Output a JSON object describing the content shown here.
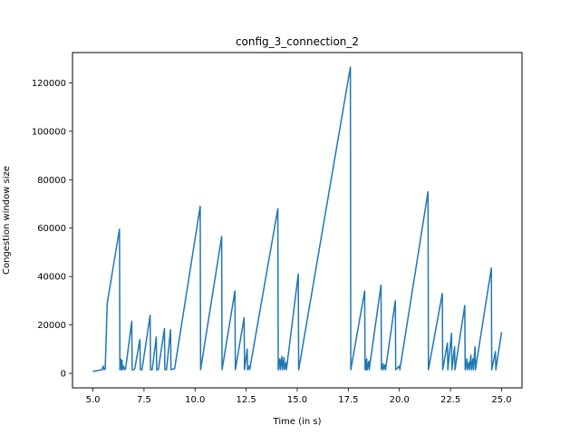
{
  "chart_data": {
    "type": "line",
    "title": "config_3_connection_2",
    "xlabel": "Time (in s)",
    "ylabel": "Congestion window size",
    "xlim": [
      4.0,
      26.0
    ],
    "ylim": [
      -6000,
      132500
    ],
    "xticks": [
      5.0,
      7.5,
      10.0,
      12.5,
      15.0,
      17.5,
      20.0,
      22.5,
      25.0
    ],
    "xtick_labels": [
      "5.0",
      "7.5",
      "10.0",
      "12.5",
      "15.0",
      "17.5",
      "20.0",
      "22.5",
      "25.0"
    ],
    "yticks": [
      0,
      20000,
      40000,
      60000,
      80000,
      100000,
      120000
    ],
    "ytick_labels": [
      "0",
      "20000",
      "40000",
      "60000",
      "80000",
      "100000",
      "120000"
    ],
    "grid": false,
    "line_color": "#1f77b4",
    "series": [
      {
        "x": [
          5.0,
          5.25,
          5.45,
          5.5,
          5.55,
          5.6,
          5.7,
          6.3,
          6.32,
          6.35,
          6.4,
          6.42,
          6.45,
          6.5,
          6.55,
          6.6,
          6.9,
          6.92,
          7.0,
          7.05,
          7.3,
          7.32,
          7.4,
          7.8,
          7.82,
          7.9,
          8.1,
          8.12,
          8.2,
          8.5,
          8.52,
          8.6,
          8.8,
          8.82,
          9.0,
          10.25,
          10.27,
          11.3,
          11.32,
          11.95,
          11.97,
          12.4,
          12.42,
          12.55,
          12.57,
          12.65,
          12.67,
          14.05,
          14.07,
          14.15,
          14.17,
          14.25,
          14.27,
          14.35,
          14.37,
          14.45,
          14.47,
          15.05,
          15.07,
          17.6,
          17.62,
          18.3,
          18.32,
          18.35,
          18.37,
          18.4,
          18.42,
          18.5,
          18.52,
          19.1,
          19.12,
          19.2,
          19.22,
          19.3,
          19.32,
          19.8,
          19.82,
          20.0,
          20.02,
          21.4,
          21.42,
          22.1,
          22.12,
          22.35,
          22.37,
          22.55,
          22.57,
          22.7,
          22.72,
          23.2,
          23.22,
          23.3,
          23.32,
          23.4,
          23.42,
          23.5,
          23.52,
          23.6,
          23.62,
          23.7,
          23.72,
          24.5,
          24.52,
          24.7,
          24.72,
          25.0
        ],
        "y": [
          800,
          1200,
          1500,
          3000,
          1500,
          1800,
          29000,
          59500,
          1500,
          6000,
          1500,
          5500,
          1500,
          3000,
          1500,
          2000,
          21500,
          1500,
          1500,
          2000,
          14000,
          1500,
          1500,
          24000,
          1500,
          1500,
          15000,
          1500,
          1500,
          18500,
          1500,
          1500,
          18000,
          1500,
          2000,
          69000,
          1500,
          56500,
          1500,
          34000,
          1500,
          23000,
          1500,
          10000,
          1500,
          3000,
          1500,
          68000,
          1500,
          6000,
          1500,
          7000,
          1500,
          6500,
          1500,
          4500,
          1500,
          41000,
          1500,
          126500,
          1500,
          34000,
          1500,
          5500,
          1500,
          6000,
          1500,
          5000,
          1500,
          36500,
          1500,
          4000,
          1500,
          3500,
          1500,
          30000,
          1500,
          3000,
          1500,
          75000,
          1500,
          33000,
          1500,
          12500,
          1500,
          16500,
          1500,
          11000,
          1500,
          28000,
          1500,
          6000,
          1500,
          4500,
          1500,
          7500,
          1500,
          6000,
          1500,
          11000,
          1500,
          43500,
          1500,
          9000,
          1500,
          17000
        ]
      }
    ]
  }
}
